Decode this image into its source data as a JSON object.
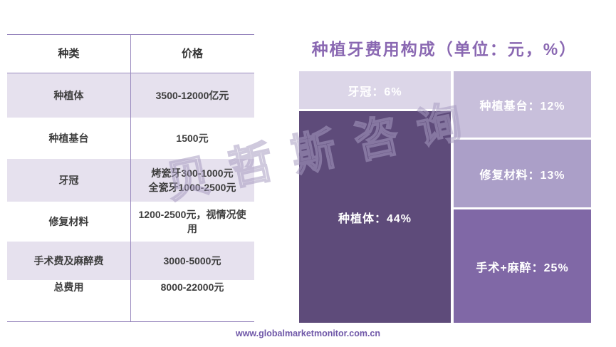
{
  "title": "种植牙费用构成（单位：元，%）",
  "watermark": "贝哲斯咨询",
  "footer": {
    "url": "www.globalmarketmonitor.com.cn"
  },
  "table": {
    "headers": {
      "category": "种类",
      "price": "价格"
    },
    "rows": [
      {
        "category": "种植体",
        "price": "3500-12000亿元"
      },
      {
        "category": "种植基台",
        "price": "1500元"
      },
      {
        "category": "牙冠",
        "price": "烤瓷牙300-1000元\n全瓷牙1000-2500元"
      },
      {
        "category": "修复材料",
        "price": "1200-2500元，视情况使用"
      },
      {
        "category": "手术费及麻醉费",
        "price": "3000-5000元"
      },
      {
        "category": "总费用",
        "price": "8000-22000元"
      }
    ]
  },
  "chart_data": {
    "type": "treemap",
    "title": "种植牙费用构成（单位：元，%）",
    "unit": "元，%",
    "segments": [
      {
        "label": "牙冠",
        "value": 6,
        "display": "牙冠：6%",
        "color": "#dcd6e8"
      },
      {
        "label": "种植体",
        "value": 44,
        "display": "种植体：44%",
        "color": "#5e4b7a"
      },
      {
        "label": "种植基台",
        "value": 12,
        "display": "种植基台：12%",
        "color": "#c8bfdb"
      },
      {
        "label": "修复材料",
        "value": 13,
        "display": "修复材料：13%",
        "color": "#ab9fc8"
      },
      {
        "label": "手术+麻醉",
        "value": 25,
        "display": "手术+麻醉：25%",
        "color": "#8068a6"
      }
    ],
    "legend": "none",
    "layout": "two-column: left column = 牙冠(top)+种植体, right column = 种植基台+修复材料+手术+麻醉"
  },
  "colors": {
    "title_purple": "#8a68b2",
    "table_row_shade": "#e6e1ee",
    "table_border": "#9c8cc0",
    "url_purple": "#6f57a8",
    "label_text": "#ffffff"
  }
}
